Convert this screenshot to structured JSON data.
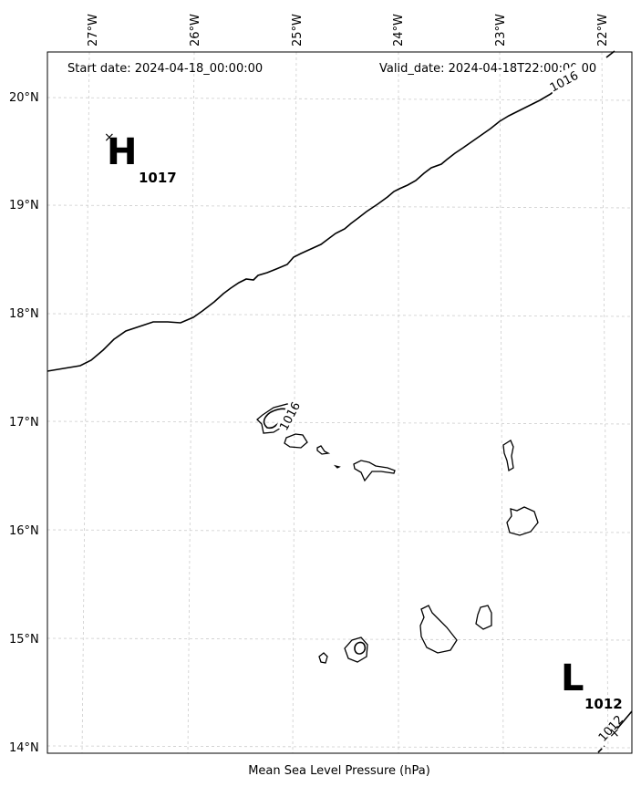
{
  "header": {
    "start_date": "Start date: 2024-04-18_00:00:00",
    "valid_date": "Valid_date: 2024-04-18T22:00:00.00"
  },
  "xlabel": "Mean Sea Level Pressure (hPa)",
  "lon_ticks": [
    "27°W",
    "26°W",
    "25°W",
    "24°W",
    "23°W",
    "22°W"
  ],
  "lat_ticks": [
    "20°N",
    "19°N",
    "18°N",
    "17°N",
    "16°N",
    "15°N",
    "14°N"
  ],
  "pressure_centers": [
    {
      "type": "H",
      "value": "1017"
    },
    {
      "type": "L",
      "value": "1012"
    }
  ],
  "contour_labels": [
    "1016",
    "1016",
    "1012"
  ],
  "grid": true,
  "colors": {
    "contour": "#000000",
    "grid": "#cccccc",
    "coast": "#000000"
  }
}
